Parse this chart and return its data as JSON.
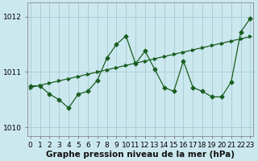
{
  "x": [
    0,
    1,
    2,
    3,
    4,
    5,
    6,
    7,
    8,
    9,
    10,
    11,
    12,
    13,
    14,
    15,
    16,
    17,
    18,
    19,
    20,
    21,
    22,
    23
  ],
  "line1": [
    1010.75,
    1010.75,
    1010.6,
    1010.5,
    1010.35,
    1010.6,
    1010.65,
    1010.85,
    1011.25,
    1011.5,
    1011.65,
    1011.15,
    1011.38,
    1011.05,
    1010.72,
    1010.65,
    1011.2,
    1010.72,
    1010.65,
    1010.55,
    1010.55,
    1010.82,
    1011.72,
    1011.97
  ],
  "line2": [
    1010.72,
    1010.76,
    1010.8,
    1010.84,
    1010.88,
    1010.92,
    1010.96,
    1011.0,
    1011.04,
    1011.08,
    1011.12,
    1011.16,
    1011.2,
    1011.24,
    1011.28,
    1011.32,
    1011.36,
    1011.4,
    1011.44,
    1011.48,
    1011.52,
    1011.56,
    1011.6,
    1011.64
  ],
  "bg_color": "#cce8ef",
  "grid_color": "#aacdd6",
  "line_color": "#1a5e20",
  "ylabel_ticks": [
    1010,
    1011,
    1012
  ],
  "ylim": [
    1009.85,
    1012.25
  ],
  "xlim": [
    -0.3,
    23.3
  ],
  "xlabel": "Graphe pression niveau de la mer (hPa)",
  "xlabel_fontsize": 7.5,
  "tick_fontsize": 6.5,
  "figwidth": 3.2,
  "figheight": 2.0,
  "dpi": 100
}
